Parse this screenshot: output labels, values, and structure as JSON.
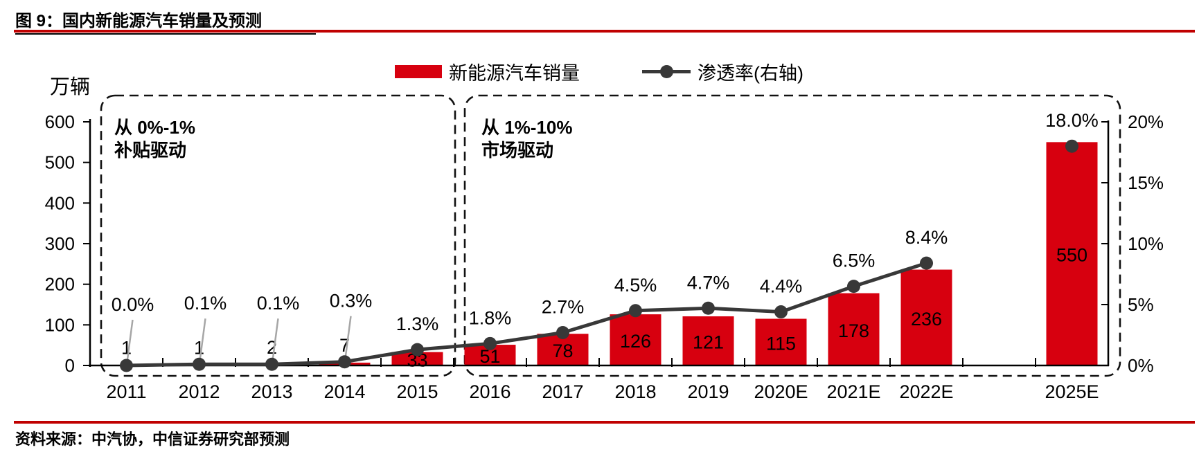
{
  "header": {
    "title": "图 9：国内新能源汽车销量及预测"
  },
  "legend": {
    "bar_label": "新能源汽车销量",
    "line_label": "渗透率(右轴)"
  },
  "source": {
    "text": "资料来源：中汽协，中信证券研究部预测"
  },
  "colors": {
    "bar": "#D7000F",
    "line": "#383838",
    "rule": "#C00000",
    "leader": "#A6A6A6",
    "box": "#111111"
  },
  "chart_data": {
    "type": "combo-bar-line",
    "categories": [
      "2011",
      "2012",
      "2013",
      "2014",
      "2015",
      "2016",
      "2017",
      "2018",
      "2019",
      "2020E",
      "2021E",
      "2022E",
      "2025E"
    ],
    "series": [
      {
        "name": "新能源汽车销量",
        "type": "bar",
        "axis": "left",
        "values": [
          1,
          1,
          2,
          7,
          33,
          51,
          78,
          126,
          121,
          115,
          178,
          236,
          550
        ]
      },
      {
        "name": "渗透率(右轴)",
        "type": "line",
        "axis": "right",
        "values": [
          0.0,
          0.1,
          0.1,
          0.3,
          1.3,
          1.8,
          2.7,
          4.5,
          4.7,
          4.4,
          6.5,
          8.4,
          18.0
        ],
        "labels": [
          "0.0%",
          "0.1%",
          "0.1%",
          "0.3%",
          "1.3%",
          "1.8%",
          "2.7%",
          "4.5%",
          "4.7%",
          "4.4%",
          "6.5%",
          "8.4%",
          "18.0%"
        ]
      }
    ],
    "left_axis": {
      "title": "万辆",
      "ticks": [
        600,
        500,
        400,
        300,
        200,
        100,
        0
      ],
      "max": 600
    },
    "right_axis": {
      "ticks": [
        "20%",
        "15%",
        "10%",
        "5%",
        "0%"
      ],
      "tick_values": [
        20,
        15,
        10,
        5,
        0
      ],
      "max": 20
    },
    "annotations": [
      {
        "line1": "从 0%-1%",
        "line2": "补贴驱动"
      },
      {
        "line1": "从 1%-10%",
        "line2": "市场驱动"
      }
    ],
    "layout_hints": {
      "grid": false,
      "legend_position": "top-center",
      "gap_after": "2022E"
    }
  }
}
